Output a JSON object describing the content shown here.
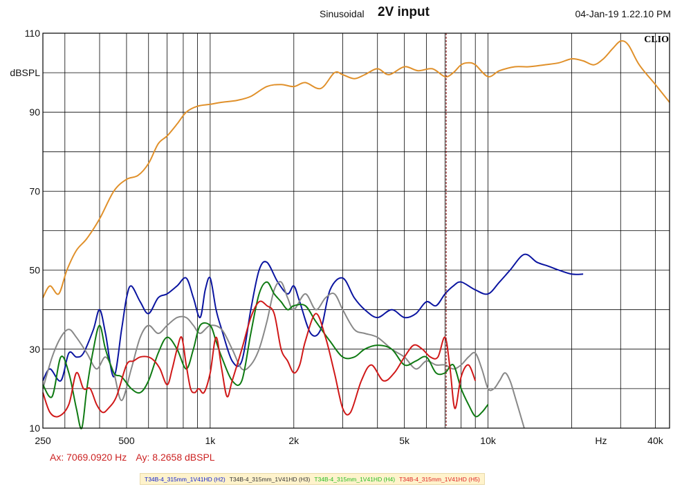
{
  "header": {
    "mode": "Sinusoidal",
    "title": "2V input",
    "datetime": "04-Jan-19 1.22.10 PM",
    "logo": "CLIO"
  },
  "cursor": {
    "ax_label": "Ax: 7069.0920 Hz",
    "ay_label": "Ay: 8.2658 dBSPL",
    "x_hz": 7069.092
  },
  "colors": {
    "fundamental": "#e0902a",
    "H2": "#0a14a0",
    "H3": "#888888",
    "H4": "#0e7a12",
    "H5": "#d01818",
    "cursor": "#8b1a1a",
    "grid": "#000000"
  },
  "chart_data": {
    "type": "line",
    "title": "2V input",
    "xlabel": "Hz",
    "ylabel": "dBSPL",
    "xscale": "log",
    "xlim": [
      250,
      45000
    ],
    "ylim": [
      10,
      110
    ],
    "x_ticks": [
      {
        "value": 250,
        "label": "250"
      },
      {
        "value": 500,
        "label": "500"
      },
      {
        "value": 1000,
        "label": "1k"
      },
      {
        "value": 2000,
        "label": "2k"
      },
      {
        "value": 5000,
        "label": "5k"
      },
      {
        "value": 10000,
        "label": "10k"
      },
      {
        "value": 25500,
        "label": "Hz"
      },
      {
        "value": 40000,
        "label": "40k"
      }
    ],
    "y_ticks": [
      {
        "value": 110,
        "label": "110"
      },
      {
        "value": 100,
        "label": "dBSPL"
      },
      {
        "value": 90,
        "label": "90"
      },
      {
        "value": 70,
        "label": "70"
      },
      {
        "value": 50,
        "label": "50"
      },
      {
        "value": 30,
        "label": "30"
      },
      {
        "value": 10,
        "label": "10"
      }
    ],
    "grid": true,
    "series": [
      {
        "key": "fundamental",
        "x": [
          250,
          265,
          285,
          305,
          330,
          360,
          400,
          450,
          500,
          550,
          600,
          650,
          700,
          760,
          820,
          900,
          1000,
          1100,
          1250,
          1400,
          1600,
          1800,
          2000,
          2200,
          2500,
          2800,
          3000,
          3300,
          3600,
          4000,
          4400,
          5000,
          5600,
          6300,
          7000,
          7500,
          8000,
          8500,
          9000,
          10000,
          11000,
          12500,
          14000,
          16000,
          18000,
          20000,
          22000,
          24000,
          26000,
          28000,
          30000,
          32000,
          35000,
          40000,
          45000
        ],
        "values": [
          43,
          46,
          44,
          50,
          55,
          58,
          63,
          70,
          73,
          74,
          77,
          82,
          84,
          87,
          90,
          91.5,
          92,
          92.5,
          93,
          94,
          96.5,
          97,
          96.5,
          97.5,
          96,
          100,
          99.5,
          98.5,
          99.5,
          101,
          99.5,
          101.5,
          100.5,
          101,
          99,
          100,
          102,
          102.5,
          102,
          99,
          100.5,
          101.5,
          101.5,
          102,
          102.5,
          103.5,
          103,
          102,
          103.5,
          106,
          108,
          107,
          102,
          97,
          92.5
        ]
      },
      {
        "key": "H2",
        "name": "T34B-4_315mm_1V41HD (H2)",
        "x": [
          250,
          265,
          290,
          310,
          330,
          350,
          380,
          400,
          420,
          450,
          480,
          500,
          520,
          560,
          600,
          650,
          700,
          760,
          820,
          870,
          920,
          960,
          1000,
          1050,
          1100,
          1200,
          1300,
          1400,
          1500,
          1600,
          1750,
          1900,
          2000,
          2100,
          2300,
          2500,
          2700,
          3000,
          3300,
          3600,
          4000,
          4500,
          5000,
          5500,
          6000,
          6500,
          7000,
          7500,
          8000,
          9000,
          10000,
          11000,
          12000,
          13500,
          15000,
          16500,
          18000,
          20000,
          22000
        ],
        "values": [
          22,
          25,
          22,
          29,
          28,
          29,
          35,
          40,
          34,
          23,
          35,
          43,
          46,
          42,
          39,
          43,
          44,
          46,
          48,
          43,
          38,
          45,
          48,
          40,
          35,
          27,
          27,
          40,
          50,
          52,
          47,
          44,
          46,
          42,
          34,
          35,
          45,
          48,
          43,
          40,
          38,
          40,
          38,
          39,
          42,
          41,
          44,
          46,
          47,
          45,
          44,
          47,
          50,
          54,
          52,
          51,
          50,
          49,
          49
        ]
      },
      {
        "key": "H3",
        "name": "T34B-4_315mm_1V41HD (H3)",
        "x": [
          250,
          270,
          290,
          310,
          330,
          360,
          390,
          420,
          450,
          480,
          520,
          560,
          600,
          650,
          700,
          760,
          820,
          870,
          920,
          1000,
          1100,
          1200,
          1300,
          1400,
          1500,
          1600,
          1700,
          1800,
          1900,
          2000,
          2200,
          2400,
          2600,
          2800,
          3000,
          3300,
          3600,
          4000,
          4500,
          5000,
          5500,
          6000,
          6500,
          7000,
          7500,
          8000,
          8500,
          9000,
          9500,
          10000,
          10500,
          11000,
          11500,
          12000,
          12500,
          13500
        ],
        "values": [
          20,
          28,
          33,
          35,
          33,
          29,
          25,
          28,
          24,
          17,
          25,
          33,
          36,
          34,
          36,
          38,
          38,
          36,
          34,
          36,
          35,
          30,
          25,
          26,
          30,
          37,
          45,
          47,
          43,
          40,
          44,
          40,
          43,
          44,
          40,
          35,
          34,
          33,
          30,
          28,
          25,
          27,
          26,
          26,
          25,
          26,
          28,
          29,
          25,
          20,
          20,
          22,
          24,
          22,
          18,
          10
        ]
      },
      {
        "key": "H4",
        "name": "T34B-4_315mm_1V41HD (H4)",
        "x": [
          250,
          270,
          290,
          310,
          330,
          345,
          360,
          380,
          400,
          420,
          450,
          480,
          520,
          560,
          600,
          650,
          700,
          760,
          820,
          870,
          920,
          1000,
          1050,
          1100,
          1200,
          1300,
          1400,
          1500,
          1600,
          1700,
          1800,
          1900,
          2000,
          2200,
          2400,
          2700,
          3000,
          3300,
          3600,
          4000,
          4500,
          5000,
          5500,
          6000,
          6500,
          7000,
          7500,
          8000,
          8500,
          9000,
          9500,
          10000
        ],
        "values": [
          21,
          18,
          28,
          24,
          15,
          10,
          20,
          30,
          36,
          30,
          24,
          23,
          20,
          19,
          22,
          29,
          33,
          30,
          25,
          30,
          36,
          36,
          32,
          28,
          22,
          22,
          34,
          44,
          47,
          44,
          42,
          40,
          41,
          41,
          37,
          32,
          28,
          28,
          30,
          31,
          30,
          26,
          27,
          28,
          24,
          24,
          26,
          20,
          16,
          13,
          14,
          16
        ]
      },
      {
        "key": "H5",
        "name": "T34B-4_315mm_1V41HD (H5)",
        "x": [
          250,
          265,
          285,
          310,
          330,
          350,
          370,
          390,
          410,
          430,
          460,
          500,
          530,
          560,
          600,
          630,
          660,
          700,
          730,
          760,
          790,
          820,
          850,
          880,
          910,
          950,
          1000,
          1050,
          1100,
          1150,
          1200,
          1300,
          1400,
          1500,
          1600,
          1700,
          1800,
          1900,
          2000,
          2100,
          2200,
          2400,
          2600,
          2800,
          3000,
          3200,
          3500,
          3800,
          4200,
          4600,
          5000,
          5400,
          5800,
          6200,
          6600,
          7000,
          7300,
          7600,
          8000,
          8500,
          9000
        ],
        "values": [
          19,
          14,
          13,
          16,
          24,
          20,
          20,
          16,
          14,
          15,
          18,
          26,
          27,
          28,
          28,
          27,
          25,
          21,
          25,
          30,
          33,
          26,
          20,
          19,
          20,
          19,
          24,
          33,
          25,
          18,
          22,
          30,
          38,
          42,
          41,
          39,
          30,
          27,
          24,
          26,
          32,
          39,
          33,
          24,
          15,
          14,
          22,
          26,
          22,
          24,
          28,
          31,
          30,
          28,
          28,
          33,
          25,
          15,
          23,
          26,
          22
        ]
      }
    ],
    "legend": [
      {
        "key": "H2",
        "label": "T34B-4_315mm_1V41HD (H2)",
        "color": "#1122cc"
      },
      {
        "key": "H3",
        "label": "T34B-4_315mm_1V41HD (H3)",
        "color": "#333333"
      },
      {
        "key": "H4",
        "label": "T34B-4_315mm_1V41HD (H4)",
        "color": "#22bb22"
      },
      {
        "key": "H5",
        "label": "T34B-4_315mm_1V41HD (H5)",
        "color": "#dd2222"
      }
    ]
  }
}
